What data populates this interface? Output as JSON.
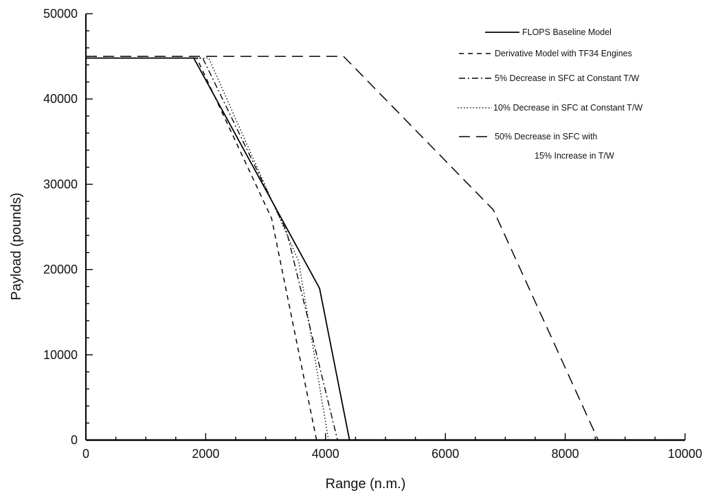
{
  "chart_data": {
    "type": "line",
    "title": "",
    "xlabel": "Range  (n.m.)",
    "ylabel": "Payload  (pounds)",
    "xlim": [
      0,
      10000
    ],
    "ylim": [
      0,
      50000
    ],
    "xticks": [
      0,
      2000,
      4000,
      6000,
      8000,
      10000
    ],
    "yticks": [
      0,
      10000,
      20000,
      30000,
      40000,
      50000
    ],
    "xtick_labels": [
      "0",
      "2000",
      "4000",
      "6000",
      "8000",
      "10000"
    ],
    "ytick_labels": [
      "0",
      "10000",
      "20000",
      "30000",
      "40000",
      "50000"
    ],
    "grid": false,
    "legend_position": "top-right",
    "series": [
      {
        "name": "FLOPS Baseline Model",
        "style": "solid",
        "x": [
          0,
          1800,
          3900,
          4400
        ],
        "y": [
          44800,
          44800,
          17800,
          0
        ]
      },
      {
        "name": "Derivative Model with TF34 Engines",
        "style": "dashed",
        "x": [
          0,
          1850,
          3100,
          3850
        ],
        "y": [
          44800,
          44800,
          26000,
          0
        ]
      },
      {
        "name": "5% Decrease in SFC at Constant T/W",
        "style": "dashdot",
        "x": [
          0,
          1950,
          3350,
          4200
        ],
        "y": [
          44800,
          44800,
          24500,
          0
        ]
      },
      {
        "name": "10% Decrease in SFC at Constant T/W",
        "style": "dotted",
        "x": [
          0,
          2050,
          3550,
          4050
        ],
        "y": [
          44800,
          44800,
          21000,
          0
        ]
      },
      {
        "name": "50% Decrease in SFC with 15% Increase in T/W",
        "legend_lines": [
          "50% Decrease in SFC with",
          "15% Increase in T/W"
        ],
        "style": "longdash",
        "x": [
          0,
          4300,
          6800,
          8550
        ],
        "y": [
          45000,
          45000,
          27000,
          0
        ]
      }
    ]
  }
}
